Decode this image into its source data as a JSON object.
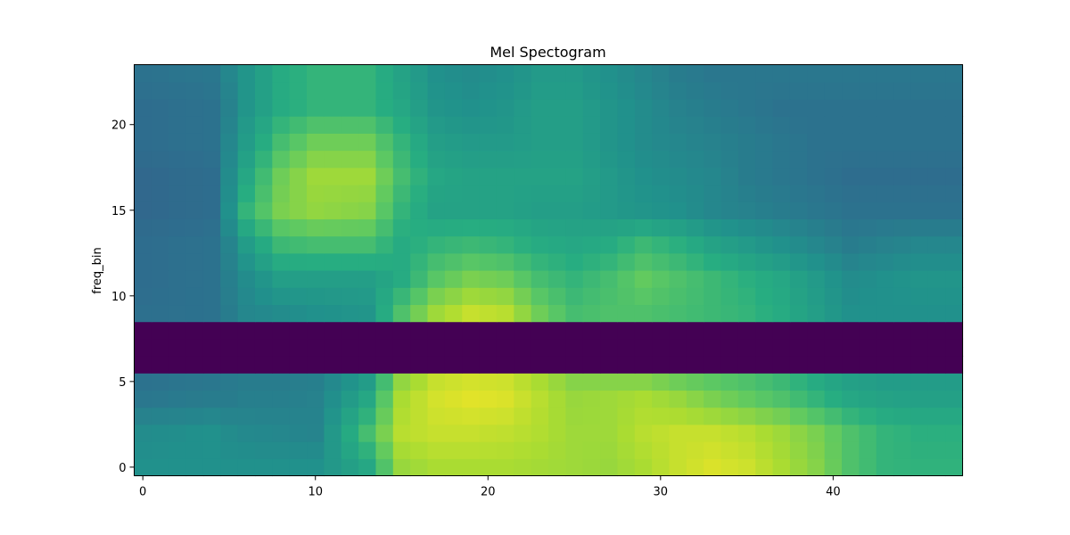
{
  "chart_data": {
    "type": "heatmap",
    "title": "Mel Spectogram",
    "xlabel": "",
    "ylabel": "freq_bin",
    "x_range": [
      0,
      47
    ],
    "y_range": [
      0,
      23
    ],
    "x_ticks": [
      0,
      10,
      20,
      30,
      40
    ],
    "y_ticks": [
      0,
      5,
      10,
      15,
      20
    ],
    "y_origin": "bottom",
    "colormap": "viridis",
    "value_range": [
      0,
      1
    ],
    "masked_rows": [
      6,
      7,
      8
    ],
    "row_profiles": {
      "bins_x": [
        0,
        4,
        5,
        6,
        8,
        10,
        13,
        15,
        17,
        19,
        21,
        23,
        25,
        27,
        29,
        31,
        33,
        35,
        37,
        39,
        41,
        43,
        45,
        47
      ],
      "rows": [
        {
          "y": 0,
          "values": [
            0.5,
            0.5,
            0.5,
            0.5,
            0.5,
            0.5,
            0.6,
            0.85,
            0.88,
            0.88,
            0.88,
            0.87,
            0.86,
            0.85,
            0.88,
            0.92,
            0.95,
            0.93,
            0.88,
            0.82,
            0.72,
            0.66,
            0.65,
            0.65
          ]
        },
        {
          "y": 2,
          "values": [
            0.48,
            0.5,
            0.48,
            0.47,
            0.46,
            0.45,
            0.7,
            0.9,
            0.92,
            0.92,
            0.91,
            0.89,
            0.86,
            0.86,
            0.9,
            0.92,
            0.92,
            0.9,
            0.86,
            0.8,
            0.72,
            0.66,
            0.64,
            0.64
          ]
        },
        {
          "y": 4,
          "values": [
            0.4,
            0.42,
            0.42,
            0.43,
            0.43,
            0.44,
            0.6,
            0.88,
            0.94,
            0.96,
            0.95,
            0.9,
            0.85,
            0.86,
            0.88,
            0.85,
            0.8,
            0.76,
            0.72,
            0.66,
            0.6,
            0.58,
            0.57,
            0.57
          ]
        },
        {
          "y": 5,
          "values": [
            0.38,
            0.4,
            0.41,
            0.42,
            0.42,
            0.43,
            0.55,
            0.84,
            0.92,
            0.94,
            0.93,
            0.88,
            0.82,
            0.82,
            0.82,
            0.78,
            0.75,
            0.72,
            0.68,
            0.62,
            0.57,
            0.55,
            0.55,
            0.55
          ]
        },
        {
          "y": 9,
          "values": [
            0.37,
            0.38,
            0.42,
            0.46,
            0.48,
            0.5,
            0.52,
            0.72,
            0.86,
            0.92,
            0.9,
            0.78,
            0.7,
            0.72,
            0.72,
            0.7,
            0.68,
            0.66,
            0.62,
            0.56,
            0.5,
            0.5,
            0.5,
            0.5
          ]
        },
        {
          "y": 11,
          "values": [
            0.36,
            0.38,
            0.43,
            0.48,
            0.56,
            0.56,
            0.56,
            0.62,
            0.74,
            0.8,
            0.78,
            0.7,
            0.66,
            0.7,
            0.76,
            0.72,
            0.68,
            0.64,
            0.6,
            0.54,
            0.48,
            0.5,
            0.52,
            0.52
          ]
        },
        {
          "y": 13,
          "values": [
            0.36,
            0.38,
            0.45,
            0.55,
            0.68,
            0.7,
            0.7,
            0.62,
            0.66,
            0.68,
            0.66,
            0.62,
            0.6,
            0.62,
            0.68,
            0.64,
            0.58,
            0.54,
            0.5,
            0.46,
            0.42,
            0.44,
            0.46,
            0.46
          ]
        },
        {
          "y": 15,
          "values": [
            0.34,
            0.36,
            0.5,
            0.66,
            0.8,
            0.84,
            0.82,
            0.66,
            0.58,
            0.58,
            0.58,
            0.56,
            0.56,
            0.54,
            0.52,
            0.5,
            0.46,
            0.44,
            0.42,
            0.4,
            0.38,
            0.38,
            0.38,
            0.38
          ]
        },
        {
          "y": 17,
          "values": [
            0.34,
            0.36,
            0.48,
            0.6,
            0.78,
            0.86,
            0.86,
            0.7,
            0.6,
            0.58,
            0.58,
            0.58,
            0.58,
            0.54,
            0.5,
            0.48,
            0.46,
            0.42,
            0.4,
            0.38,
            0.36,
            0.36,
            0.36,
            0.36
          ]
        },
        {
          "y": 19,
          "values": [
            0.36,
            0.38,
            0.46,
            0.55,
            0.7,
            0.78,
            0.78,
            0.66,
            0.56,
            0.54,
            0.54,
            0.56,
            0.56,
            0.52,
            0.48,
            0.46,
            0.44,
            0.42,
            0.4,
            0.38,
            0.38,
            0.38,
            0.38,
            0.38
          ]
        },
        {
          "y": 21,
          "values": [
            0.36,
            0.38,
            0.44,
            0.52,
            0.62,
            0.66,
            0.66,
            0.6,
            0.52,
            0.5,
            0.52,
            0.56,
            0.56,
            0.52,
            0.48,
            0.44,
            0.42,
            0.4,
            0.38,
            0.38,
            0.38,
            0.38,
            0.38,
            0.38
          ]
        },
        {
          "y": 23,
          "values": [
            0.38,
            0.4,
            0.46,
            0.52,
            0.62,
            0.66,
            0.66,
            0.58,
            0.5,
            0.48,
            0.5,
            0.54,
            0.54,
            0.5,
            0.46,
            0.42,
            0.4,
            0.4,
            0.4,
            0.4,
            0.4,
            0.4,
            0.4,
            0.4
          ]
        }
      ]
    }
  }
}
